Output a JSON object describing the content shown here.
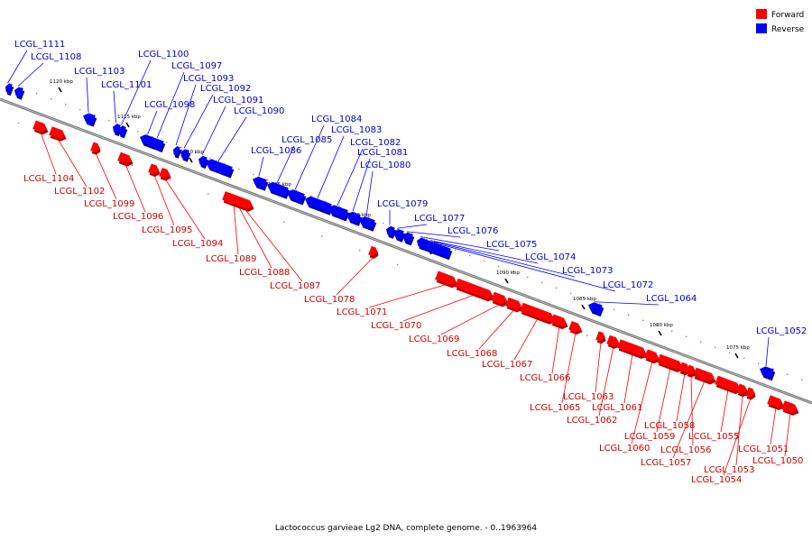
{
  "legend": [
    {
      "label": "Forward",
      "color": "#ff0000"
    },
    {
      "label": "Reverse",
      "color": "#0000ff"
    }
  ],
  "caption": "Lactococcus garvieae Lg2 DNA, complete genome. - 0..1963964",
  "ruler_ticks": [
    "1120 kbp",
    "1115 kbp",
    "1110 kbp",
    "1105 kbp",
    "1100 kbp",
    "1095 kbp",
    "1090 kbp",
    "1085 kbp",
    "1080 kbp",
    "1075 kbp"
  ],
  "reverse_genes": [
    "LCGL_1111",
    "LCGL_1108",
    "LCGL_1103",
    "LCGL_1101",
    "LCGL_1100",
    "LCGL_1098",
    "LCGL_1097",
    "LCGL_1093",
    "LCGL_1092",
    "LCGL_1091",
    "LCGL_1090",
    "LCGL_1086",
    "LCGL_1085",
    "LCGL_1084",
    "LCGL_1083",
    "LCGL_1082",
    "LCGL_1081",
    "LCGL_1080",
    "LCGL_1079",
    "LCGL_1077",
    "LCGL_1076",
    "LCGL_1075",
    "LCGL_1074",
    "LCGL_1073",
    "LCGL_1072",
    "LCGL_1064",
    "LCGL_1052"
  ],
  "forward_genes": [
    "LCGL_1104",
    "LCGL_1102",
    "LCGL_1099",
    "LCGL_1096",
    "LCGL_1095",
    "LCGL_1094",
    "LCGL_1089",
    "LCGL_1088",
    "LCGL_1087",
    "LCGL_1078",
    "LCGL_1071",
    "LCGL_1070",
    "LCGL_1069",
    "LCGL_1068",
    "LCGL_1067",
    "LCGL_1066",
    "LCGL_1065",
    "LCGL_1063",
    "LCGL_1062",
    "LCGL_1061",
    "LCGL_1060",
    "LCGL_1059",
    "LCGL_1058",
    "LCGL_1057",
    "LCGL_1056",
    "LCGL_1055",
    "LCGL_1054",
    "LCGL_1053",
    "LCGL_1051",
    "LCGL_1050"
  ]
}
